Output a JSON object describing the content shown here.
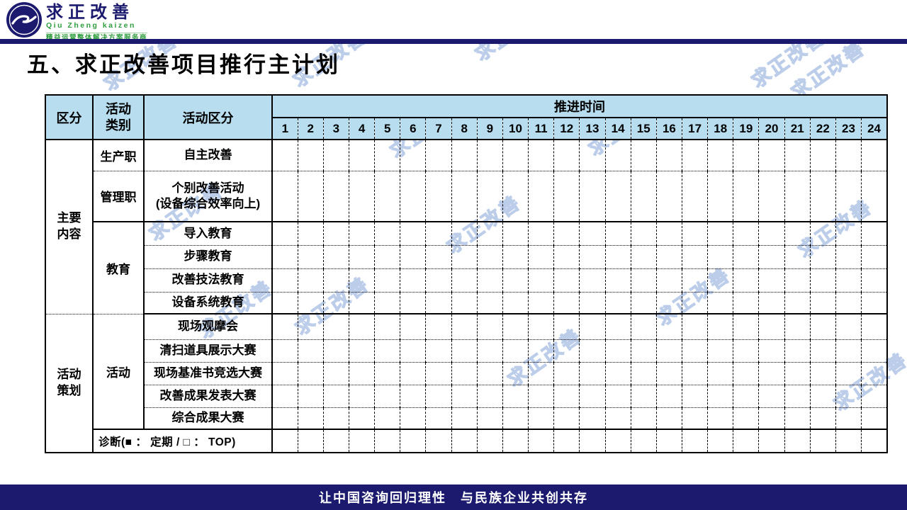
{
  "logo": {
    "brand_cn": "求正改善",
    "brand_en": "Qiu Zheng kaizen",
    "tagline": "精益运营整体解决方案服务商"
  },
  "title": "五、求正改善项目推行主计划",
  "watermark_text": "求正改善",
  "table": {
    "headers": {
      "col1": "区分",
      "col2_line1": "活动",
      "col2_line2": "类别",
      "col3": "活动区分",
      "timeline": "推进时间"
    },
    "timeline_numbers": [
      "1",
      "2",
      "3",
      "4",
      "5",
      "6",
      "7",
      "8",
      "9",
      "10",
      "11",
      "12",
      "13",
      "14",
      "15",
      "16",
      "17",
      "18",
      "19",
      "20",
      "21",
      "22",
      "23",
      "24"
    ],
    "groups": [
      {
        "line1": "主要",
        "line2": "内容"
      },
      {
        "line1": "活动",
        "line2": "策划"
      }
    ],
    "rows": [
      {
        "category": "生产职",
        "activity": "自主改善"
      },
      {
        "category": "管理职",
        "activity_line1": "个别改善活动",
        "activity_line2": "(设备综合效率向上)"
      },
      {
        "category": "教育",
        "activity": "导入教育"
      },
      {
        "activity": "步骤教育"
      },
      {
        "activity": "改善技法教育"
      },
      {
        "activity": "设备系统教育"
      },
      {
        "category": "活动",
        "activity": "现场观摩会"
      },
      {
        "activity": "清扫道具展示大赛"
      },
      {
        "activity": "现场基准书竞选大赛"
      },
      {
        "activity": "改善成果发表大赛"
      },
      {
        "activity": "综合成果大赛"
      },
      {
        "diagnosis_label": "诊断(■ ： 定期 / □ ： TOP)"
      }
    ]
  },
  "footer": {
    "text": "让中国咨询回归理性　与民族企业共创共存"
  },
  "colors": {
    "navy": "#1b1a6e",
    "header_blue": "#b7ddee",
    "watermark_blue": "#bccdea",
    "logo_green": "#2f9e3f"
  }
}
